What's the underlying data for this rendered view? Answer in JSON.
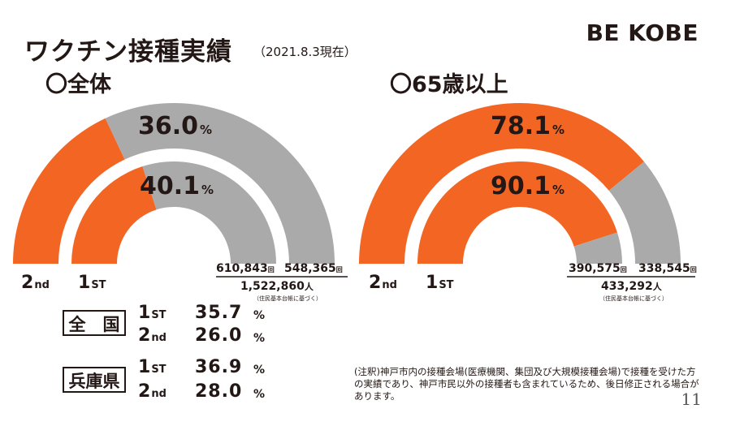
{
  "header": {
    "title": "ワクチン接種実績",
    "date": "（2021.8.3現在）",
    "logo": "BE KOBE"
  },
  "colors": {
    "vaccinated": "#f26522",
    "remaining": "#aaaaaa"
  },
  "chart_data": [
    {
      "type": "donut-gauge",
      "title": "〇全体",
      "series": [
        {
          "label": "2nd",
          "value": 36.0,
          "value_text": "36.0",
          "count": "548,365"
        },
        {
          "label": "1ST",
          "value": 40.1,
          "value_text": "40.1",
          "count": "610,843"
        }
      ],
      "unit": "%",
      "count_unit": "回",
      "population": "1,522,860",
      "population_unit": "人",
      "population_note": "（住民基本台帳に基づく）"
    },
    {
      "type": "donut-gauge",
      "title": "〇65歳以上",
      "series": [
        {
          "label": "2nd",
          "value": 78.1,
          "value_text": "78.1",
          "count": "338,545"
        },
        {
          "label": "1ST",
          "value": 90.1,
          "value_text": "90.1",
          "count": "390,575"
        }
      ],
      "unit": "%",
      "count_unit": "回",
      "population": "433,292",
      "population_unit": "人",
      "population_note": "（住民基本台帳に基づく）"
    }
  ],
  "comparison": {
    "pct": "%",
    "groups": [
      {
        "name": "全　国",
        "rows": [
          {
            "big": "1",
            "small": "ST",
            "value": "35.7"
          },
          {
            "big": "2",
            "small": "nd",
            "value": "26.0"
          }
        ]
      },
      {
        "name": "兵庫県",
        "rows": [
          {
            "big": "1",
            "small": "ST",
            "value": "36.9"
          },
          {
            "big": "2",
            "small": "nd",
            "value": "28.0"
          }
        ]
      }
    ]
  },
  "footnote": "(注釈)神戸市内の接種会場(医療機関、集団及び大規模接種会場)で接種を受けた方の実績であり、神戸市民以外の接種者も含まれているため、後日修正される場合があります。",
  "page_number": "11"
}
